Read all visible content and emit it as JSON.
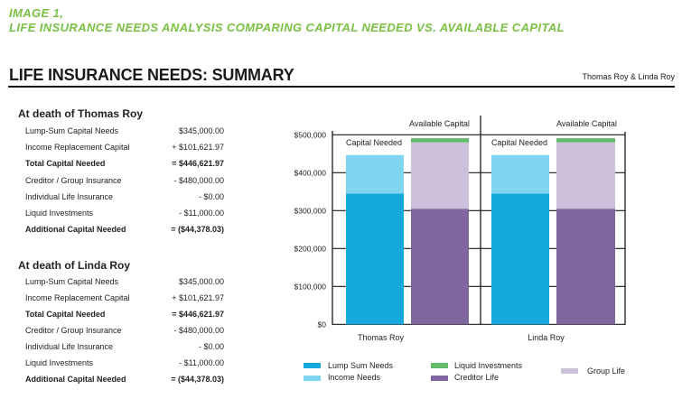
{
  "header": {
    "figure_label": "IMAGE 1,",
    "figure_caption": "LIFE INSURANCE NEEDS ANALYSIS COMPARING CAPITAL NEEDED VS. AVAILABLE CAPITAL",
    "title": "LIFE INSURANCE NEEDS: SUMMARY",
    "clients": "Thomas Roy & Linda Roy"
  },
  "colors": {
    "accent_green": "#7ac143",
    "text": "#222222"
  },
  "summary": [
    {
      "heading": "At death of Thomas Roy",
      "rows": [
        {
          "label": "Lump-Sum Capital Needs",
          "value": "$345,000.00"
        },
        {
          "label": "Income Replacement Capital",
          "value": "+ $101,621.97"
        },
        {
          "label": "Total Capital Needed",
          "value": "= $446,621.97"
        },
        {
          "label": "Creditor / Group Insurance",
          "value": "- $480,000.00"
        },
        {
          "label": "Individual Life Insurance",
          "value": "- $0.00"
        },
        {
          "label": "Liquid Investments",
          "value": "- $11,000.00"
        },
        {
          "label": "Additional Capital Needed",
          "value": "= ($44,378.03)"
        }
      ]
    },
    {
      "heading": "At death of Linda Roy",
      "rows": [
        {
          "label": "Lump-Sum Capital Needs",
          "value": "$345,000.00"
        },
        {
          "label": "Income Replacement Capital",
          "value": "+ $101,621.97"
        },
        {
          "label": "Total Capital Needed",
          "value": "= $446,621.97"
        },
        {
          "label": "Creditor / Group Insurance",
          "value": "- $480,000.00"
        },
        {
          "label": "Individual Life Insurance",
          "value": "- $0.00"
        },
        {
          "label": "Liquid Investments",
          "value": "- $11,000.00"
        },
        {
          "label": "Additional Capital Needed",
          "value": "= ($44,378.03)"
        }
      ]
    }
  ],
  "chart_data": {
    "type": "bar",
    "stacked": true,
    "title": "",
    "xlabel": "",
    "ylabel": "",
    "categories": [
      "Thomas Roy",
      "Linda Roy"
    ],
    "stack_labels": [
      "Capital Needed",
      "Available Capital"
    ],
    "series": [
      {
        "name": "Lump Sum Needs",
        "stack": "Capital Needed",
        "color": "#13a9dd",
        "values": [
          345000,
          345000
        ]
      },
      {
        "name": "Income Needs",
        "stack": "Capital Needed",
        "color": "#80d4ef",
        "values": [
          101621.97,
          101621.97
        ]
      },
      {
        "name": "Creditor Life",
        "stack": "Available Capital",
        "color": "#80669e",
        "values": [
          305000,
          305000
        ]
      },
      {
        "name": "Group Life",
        "stack": "Available Capital",
        "color": "#cdc0da",
        "values": [
          175000,
          175000
        ]
      },
      {
        "name": "Liquid Investments",
        "stack": "Available Capital",
        "color": "#61bb6a",
        "values": [
          11000,
          11000
        ]
      }
    ],
    "ylim": [
      0,
      500000
    ],
    "yticks": [
      0,
      100000,
      200000,
      300000,
      400000,
      500000
    ],
    "ytick_labels": [
      "$0",
      "$100,000",
      "$200,000",
      "$300,000",
      "$400,000",
      "$500,000"
    ],
    "grid": true,
    "legend": {
      "position": "bottom"
    }
  }
}
